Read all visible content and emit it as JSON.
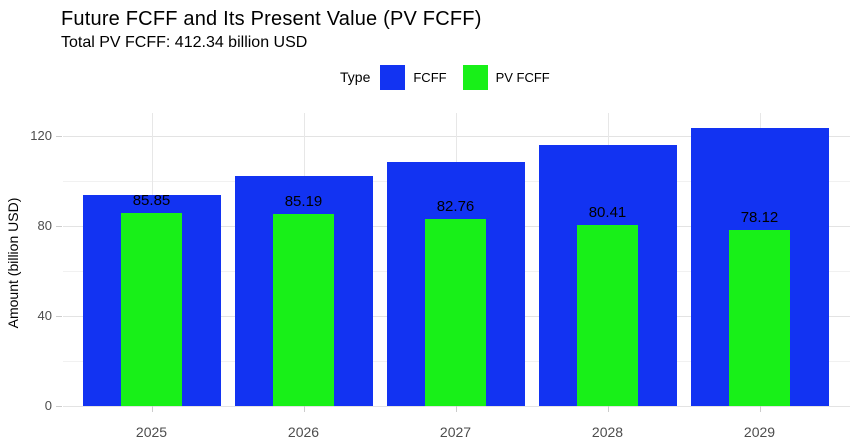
{
  "title": "Future FCFF and Its Present Value (PV FCFF)",
  "subtitle": "Total PV FCFF: 412.34 billion USD",
  "legend": {
    "label": "Type",
    "items": [
      {
        "name": "FCFF",
        "color": "#1233f2"
      },
      {
        "name": "PV FCFF",
        "color": "#18f018"
      }
    ]
  },
  "chart_data": {
    "type": "bar",
    "title": "Future FCFF and Its Present Value (PV FCFF)",
    "subtitle": "Total PV FCFF: 412.34 billion USD",
    "categories": [
      "2025",
      "2026",
      "2027",
      "2028",
      "2029"
    ],
    "series": [
      {
        "name": "FCFF",
        "color": "#1233f2",
        "values": [
          93.4,
          102.0,
          108.3,
          115.9,
          123.4
        ]
      },
      {
        "name": "PV FCFF",
        "color": "#18f018",
        "values": [
          85.85,
          85.19,
          82.76,
          80.41,
          78.12
        ],
        "labels": [
          "85.85",
          "85.19",
          "82.76",
          "80.41",
          "78.12"
        ]
      }
    ],
    "xlabel": "",
    "ylabel": "Amount (billion USD)",
    "ylim": [
      0,
      130
    ],
    "y_ticks": [
      0,
      40,
      80,
      120
    ],
    "y_minor_ticks": [
      20,
      60,
      100
    ],
    "grid": true,
    "legend_position": "top-center",
    "bar_style": "overlaid (PV FCFF narrower bar drawn on top of FCFF bar)"
  }
}
